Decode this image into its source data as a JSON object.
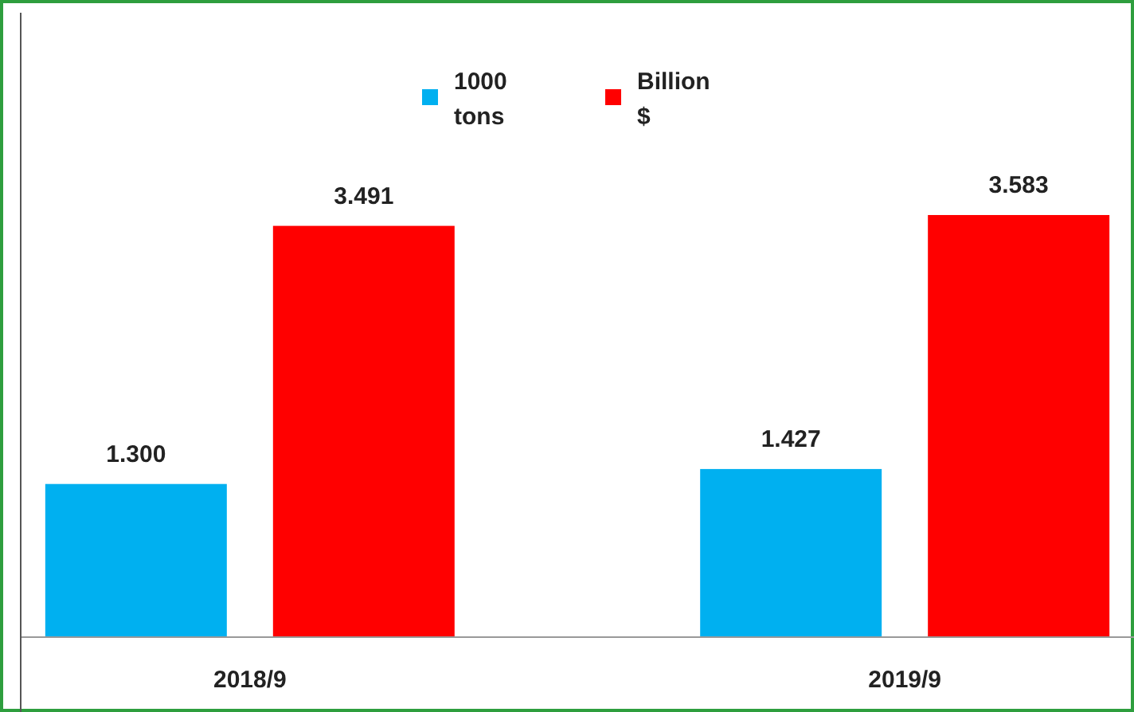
{
  "chart_data": {
    "type": "bar",
    "categories": [
      "2018/9",
      "2019/9"
    ],
    "series": [
      {
        "name": "1000 tons",
        "color": "#00b0f0",
        "values": [
          1.3,
          1.427
        ],
        "value_labels": [
          "1.300",
          "1.427"
        ]
      },
      {
        "name": "Billion $",
        "color": "#ff0000",
        "values": [
          3.491,
          3.583
        ],
        "value_labels": [
          "3.491",
          "3.583"
        ]
      }
    ],
    "ylim": [
      0,
      5.3
    ],
    "legend": "top"
  }
}
